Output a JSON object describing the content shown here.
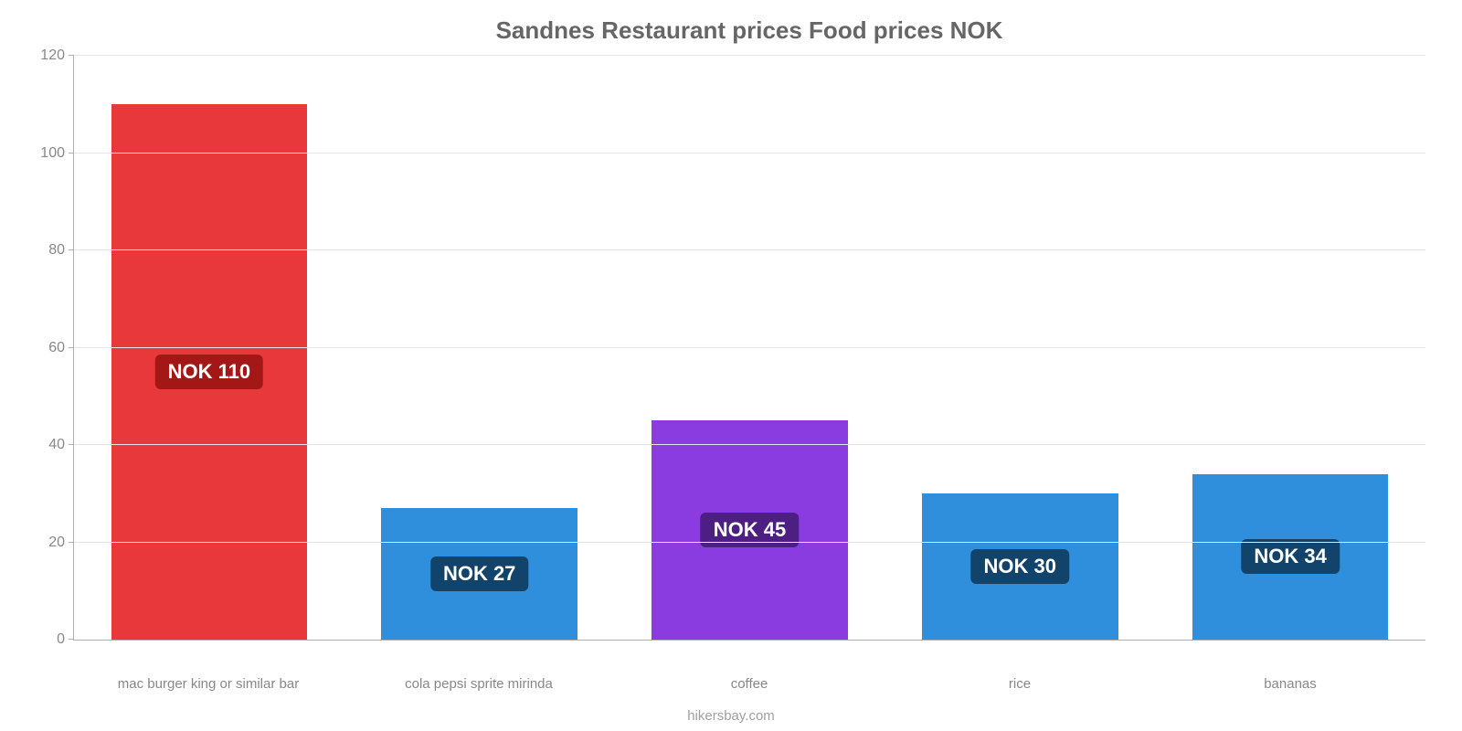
{
  "chart": {
    "type": "bar",
    "title": "Sandnes Restaurant prices Food prices NOK",
    "title_color": "#666666",
    "title_fontsize": 26,
    "background_color": "#ffffff",
    "axis_line_color": "#b0b0b0",
    "grid_color": "#e6e6e6",
    "tick_label_color": "#888888",
    "tick_label_fontsize": 16,
    "x_label_fontsize": 15,
    "label_fontsize": 22,
    "ylim": [
      0,
      120
    ],
    "ytick_step": 20,
    "yticks": [
      0,
      20,
      40,
      60,
      80,
      100,
      120
    ],
    "bar_width_pct": 14.5,
    "label_text_color": "#ffffff",
    "source": "hikersbay.com",
    "source_color": "#a0a0a0",
    "categories": [
      {
        "label": "mac burger king or similar bar",
        "value": 110,
        "value_label": "NOK 110",
        "bar_color": "#e8383b",
        "badge_color": "#a41717"
      },
      {
        "label": "cola pepsi sprite mirinda",
        "value": 27,
        "value_label": "NOK 27",
        "bar_color": "#2f8fdd",
        "badge_color": "#12436b"
      },
      {
        "label": "coffee",
        "value": 45,
        "value_label": "NOK 45",
        "bar_color": "#8a3ce0",
        "badge_color": "#4d1f83"
      },
      {
        "label": "rice",
        "value": 30,
        "value_label": "NOK 30",
        "bar_color": "#2f8fdd",
        "badge_color": "#12436b"
      },
      {
        "label": "bananas",
        "value": 34,
        "value_label": "NOK 34",
        "bar_color": "#2f8fdd",
        "badge_color": "#12436b"
      }
    ]
  }
}
